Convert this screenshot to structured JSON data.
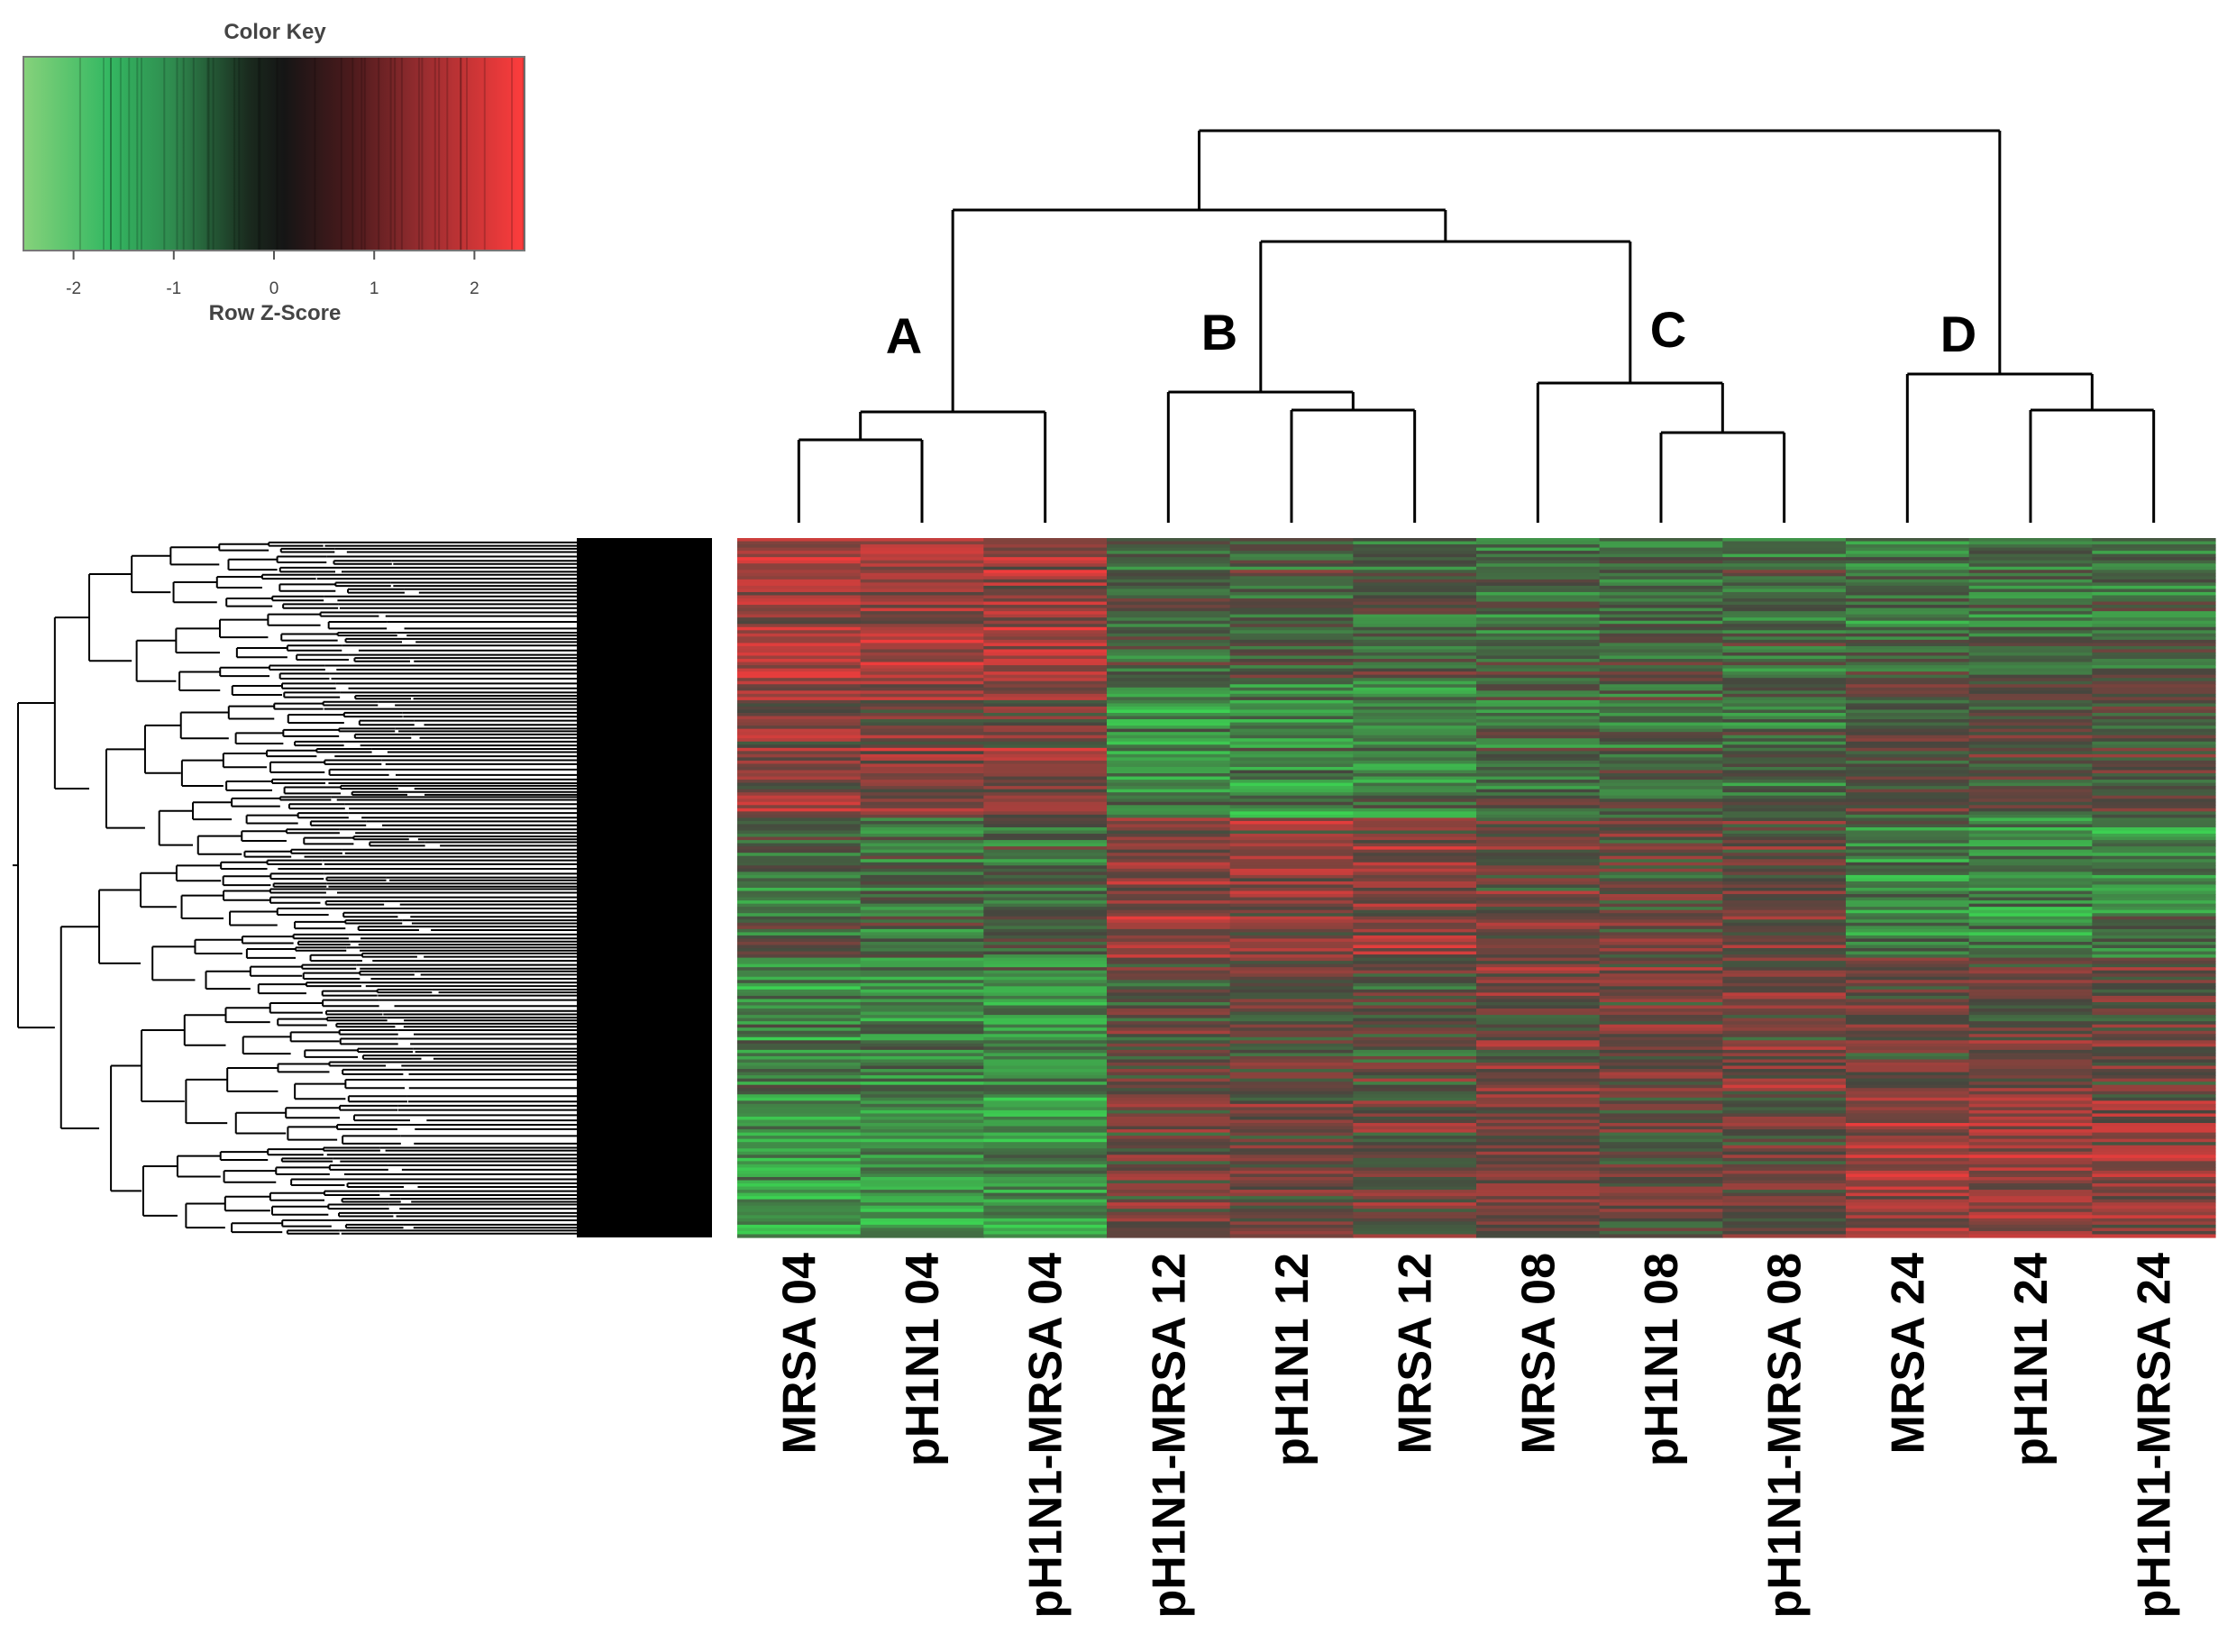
{
  "chart_data": {
    "type": "heatmap",
    "color_key": {
      "title": "Color Key",
      "xlabel": "Row Z-Score",
      "range": [
        -2.5,
        2.5
      ],
      "ticks": [
        "-2",
        "-1",
        "0",
        "1",
        "2"
      ],
      "colors": {
        "low": "#7ed07e",
        "mid_low": "#2fb35a",
        "mid": "#111111",
        "mid_high": "#7a2226",
        "high": "#ff3b3b"
      }
    },
    "columns": [
      "MRSA 04",
      "pH1N1 04",
      "pH1N1-MRSA 04",
      "pH1N1-MRSA 12",
      "pH1N1 12",
      "MRSA 12",
      "MRSA 08",
      "pH1N1 08",
      "pH1N1-MRSA 08",
      "MRSA 24",
      "pH1N1 24",
      "pH1N1-MRSA 24"
    ],
    "clusters": [
      {
        "label": "A",
        "columns": [
          "MRSA 04",
          "pH1N1 04",
          "pH1N1-MRSA 04"
        ]
      },
      {
        "label": "B",
        "columns": [
          "pH1N1-MRSA 12",
          "pH1N1 12",
          "MRSA 12"
        ]
      },
      {
        "label": "C",
        "columns": [
          "MRSA 08",
          "pH1N1 08",
          "pH1N1-MRSA 08"
        ]
      },
      {
        "label": "D",
        "columns": [
          "MRSA 24",
          "pH1N1 24",
          "pH1N1-MRSA 24"
        ]
      }
    ],
    "column_tree": [
      [
        "MRSA 04",
        "pH1N1 04",
        1.5
      ],
      [
        "MRSA 04 + pH1N1 04",
        "pH1N1-MRSA 04",
        1.9
      ],
      [
        "pH1N1 12",
        "MRSA 12",
        1.9
      ],
      [
        "pH1N1-MRSA 12",
        "pH1N1 12 + MRSA 12",
        2.2
      ],
      [
        "pH1N1 08",
        "pH1N1-MRSA 08",
        1.6
      ],
      [
        "MRSA 08",
        "pH1N1 08 + pH1N1-MRSA 08",
        2.5
      ],
      [
        "B",
        "C",
        5.1
      ],
      [
        "A",
        "B + C",
        5.8
      ],
      [
        "pH1N1 24",
        "pH1N1-MRSA 24",
        2.0
      ],
      [
        "MRSA 24",
        "pH1N1 24 + pH1N1-MRSA 24",
        2.6
      ],
      [
        "A + B + C",
        "D",
        7.0
      ]
    ],
    "row_count": 220,
    "rows_dendrogram": true,
    "column_pattern_z_scores": [
      {
        "row_block": "top",
        "A": 1.2,
        "B": -0.3,
        "C": -0.5,
        "D": -0.6
      },
      {
        "row_block": "upper-middle",
        "A": 0.8,
        "B": -1.0,
        "C": -0.4,
        "D": 0.2
      },
      {
        "row_block": "middle",
        "A": -0.5,
        "B": 0.9,
        "C": 0.3,
        "D": -1.0
      },
      {
        "row_block": "lower-middle",
        "A": -1.0,
        "B": 0.2,
        "C": 0.6,
        "D": 0.4
      },
      {
        "row_block": "bottom",
        "A": -1.4,
        "B": 0.3,
        "C": 0.3,
        "D": 1.0
      }
    ]
  }
}
